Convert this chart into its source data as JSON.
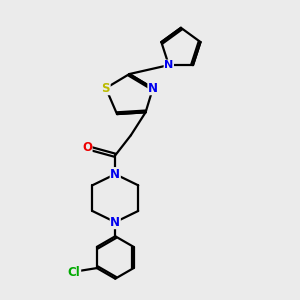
{
  "background_color": "#ebebeb",
  "bond_color": "#000000",
  "N_color": "#0000ee",
  "O_color": "#ee0000",
  "S_color": "#bbbb00",
  "Cl_color": "#00aa00",
  "line_width": 1.6,
  "figsize": [
    3.0,
    3.0
  ],
  "dpi": 100,
  "xlim": [
    0,
    10
  ],
  "ylim": [
    0,
    10
  ]
}
